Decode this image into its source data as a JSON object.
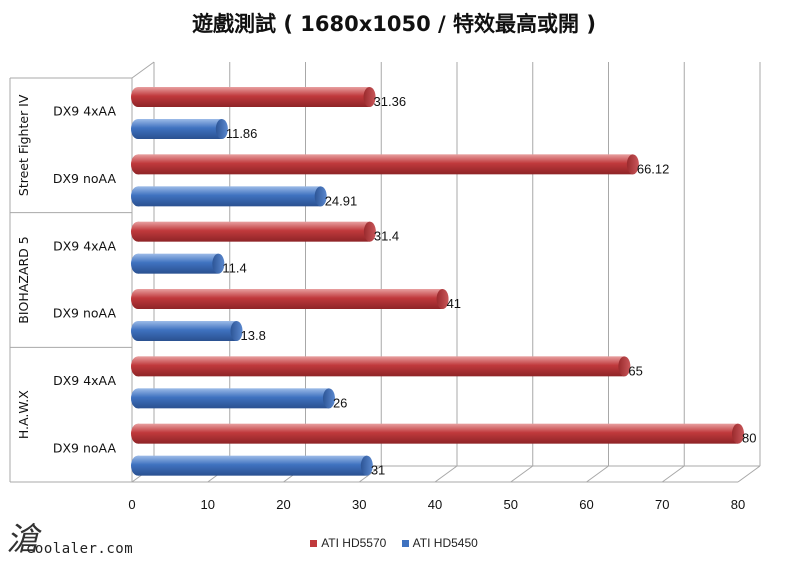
{
  "chart_data": {
    "type": "bar",
    "orientation": "horizontal",
    "title": "遊戲測試 ( 1680x1050 / 特效最高或開 )",
    "groups": [
      {
        "name": "Street Fighter IV",
        "categories": [
          "DX9 4xAA",
          "DX9 noAA"
        ]
      },
      {
        "name": "BIOHAZARD 5",
        "categories": [
          "DX9 4xAA",
          "DX9 noAA"
        ]
      },
      {
        "name": "H.A.W.X",
        "categories": [
          "DX9 4xAA",
          "DX9 noAA"
        ]
      }
    ],
    "series": [
      {
        "name": "ATI HD5570",
        "color": "#c0393c",
        "values": [
          31.36,
          66.12,
          31.4,
          41,
          65,
          80
        ],
        "labels": [
          "31.36",
          "66.12",
          "31.4",
          "41",
          "65",
          "80"
        ]
      },
      {
        "name": "ATI HD5450",
        "color": "#3f72c0",
        "values": [
          11.86,
          24.91,
          11.4,
          13.8,
          26,
          31
        ],
        "labels": [
          "11.86",
          "24.91",
          "11.4",
          "13.8",
          "26",
          "31"
        ]
      }
    ],
    "xlim": [
      0,
      80
    ],
    "xticks": [
      "0",
      "10",
      "20",
      "30",
      "40",
      "50",
      "60",
      "70",
      "80"
    ],
    "grid": true,
    "legend_position": "bottom"
  },
  "watermark": {
    "text": "coolaler.com",
    "glyph": "滄"
  }
}
